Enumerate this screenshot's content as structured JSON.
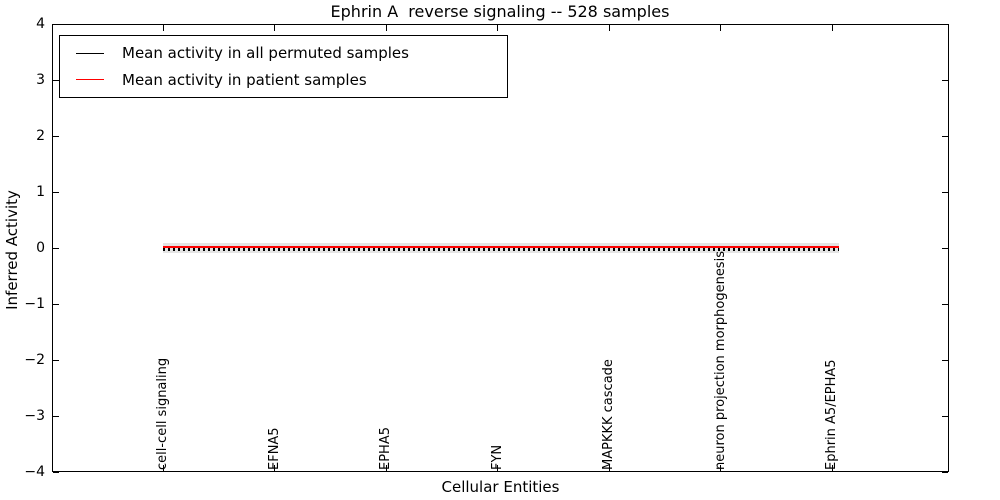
{
  "chart_data": {
    "type": "line",
    "title": "Ephrin A  reverse signaling -- 528 samples",
    "xlabel": "Cellular Entities",
    "ylabel": "Inferred Activity",
    "ylim": [
      -4,
      4
    ],
    "ytick_labels": [
      "4",
      "3",
      "2",
      "1",
      "0",
      "−1",
      "−2",
      "−3",
      "−4"
    ],
    "categories": [
      "cell-cell signaling",
      "EFNA5",
      "EPHA5",
      "FYN",
      "MAPKKK cascade",
      "neuron projection morphogenesis",
      "Ephrin A5/EPHA5"
    ],
    "series": [
      {
        "name": "Mean activity in all permuted samples",
        "color": "#000000",
        "line_style": "dashed-tick-markers",
        "values": [
          0.0,
          0.0,
          0.0,
          0.0,
          0.0,
          0.0,
          0.0
        ]
      },
      {
        "name": "Mean activity in patient samples",
        "color": "#ff0000",
        "line_style": "solid",
        "values": [
          0.03,
          0.03,
          0.03,
          0.03,
          0.03,
          0.03,
          0.03
        ]
      }
    ],
    "shaded_band": {
      "color": "#e3e3e3",
      "y_range": [
        -0.08,
        0.07
      ]
    },
    "grid": false,
    "legend_position": "upper left",
    "marker_count_approx": 135
  }
}
